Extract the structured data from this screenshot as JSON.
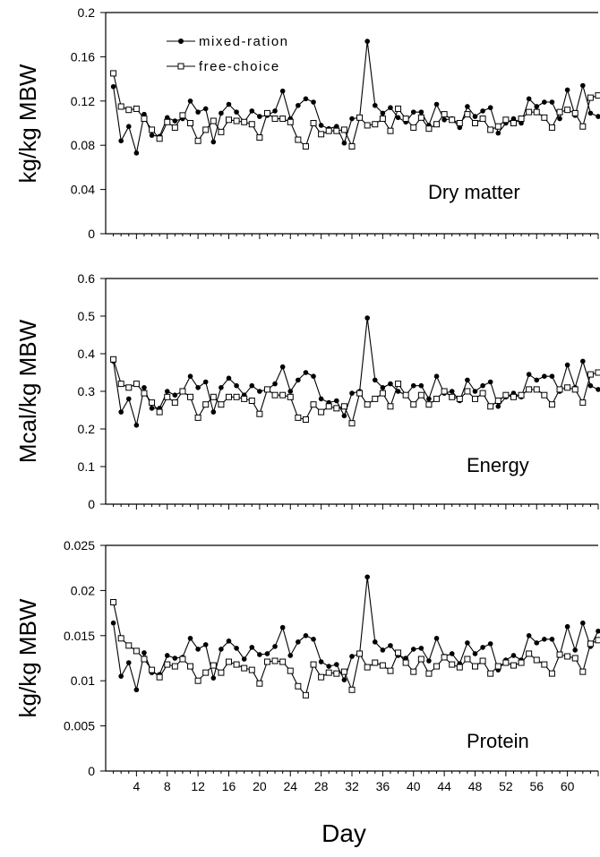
{
  "chart_data": [
    {
      "type": "line",
      "panel_label": "Dry matter",
      "ylabel": "kg/kg MBW",
      "xlim": [
        0,
        64
      ],
      "ylim": [
        0,
        0.2
      ],
      "yticks": [
        "0",
        "0.04",
        "0.08",
        "0.12",
        "0.16",
        "0.2"
      ],
      "grid": false,
      "legend": {
        "position": "top-left",
        "entries": [
          "mixed-ration",
          "free-choice"
        ]
      },
      "series": [
        {
          "name": "mixed-ration",
          "marker": "filled-circle",
          "x": [
            1,
            2,
            3,
            4,
            5,
            6,
            7,
            8,
            9,
            10,
            11,
            12,
            13,
            14,
            15,
            16,
            17,
            18,
            19,
            20,
            21,
            22,
            23,
            24,
            25,
            26,
            27,
            28,
            29,
            30,
            31,
            32,
            33,
            34,
            35,
            36,
            37,
            38,
            39,
            40,
            41,
            42,
            43,
            44,
            45,
            46,
            47,
            48,
            49,
            50,
            51,
            52,
            53,
            54,
            55,
            56,
            57,
            58,
            59,
            60,
            61,
            62,
            63,
            64
          ],
          "values": [
            0.133,
            0.084,
            0.097,
            0.073,
            0.108,
            0.089,
            0.088,
            0.105,
            0.102,
            0.104,
            0.12,
            0.11,
            0.113,
            0.083,
            0.109,
            0.117,
            0.11,
            0.101,
            0.111,
            0.106,
            0.107,
            0.111,
            0.129,
            0.104,
            0.116,
            0.122,
            0.119,
            0.098,
            0.095,
            0.097,
            0.082,
            0.104,
            0.105,
            0.174,
            0.116,
            0.109,
            0.114,
            0.105,
            0.101,
            0.11,
            0.11,
            0.098,
            0.117,
            0.103,
            0.104,
            0.096,
            0.115,
            0.106,
            0.111,
            0.114,
            0.091,
            0.1,
            0.104,
            0.1,
            0.122,
            0.115,
            0.119,
            0.119,
            0.104,
            0.13,
            0.107,
            0.134,
            0.109,
            0.106
          ]
        },
        {
          "name": "free-choice",
          "marker": "open-square",
          "x": [
            1,
            2,
            3,
            4,
            5,
            6,
            7,
            8,
            9,
            10,
            11,
            12,
            13,
            14,
            15,
            16,
            17,
            18,
            19,
            20,
            21,
            22,
            23,
            24,
            25,
            26,
            27,
            28,
            29,
            30,
            31,
            32,
            33,
            34,
            35,
            36,
            37,
            38,
            39,
            40,
            41,
            42,
            43,
            44,
            45,
            46,
            47,
            48,
            49,
            50,
            51,
            52,
            53,
            54,
            55,
            56,
            57,
            58,
            59,
            60,
            61,
            62,
            63,
            64
          ],
          "values": [
            0.145,
            0.115,
            0.112,
            0.113,
            0.104,
            0.094,
            0.086,
            0.101,
            0.096,
            0.107,
            0.1,
            0.084,
            0.094,
            0.102,
            0.092,
            0.103,
            0.102,
            0.101,
            0.099,
            0.087,
            0.109,
            0.104,
            0.104,
            0.101,
            0.085,
            0.079,
            0.1,
            0.09,
            0.093,
            0.093,
            0.094,
            0.079,
            0.105,
            0.098,
            0.099,
            0.104,
            0.093,
            0.113,
            0.104,
            0.096,
            0.105,
            0.095,
            0.099,
            0.108,
            0.103,
            0.1,
            0.108,
            0.1,
            0.104,
            0.094,
            0.097,
            0.103,
            0.1,
            0.104,
            0.11,
            0.11,
            0.105,
            0.096,
            0.11,
            0.112,
            0.109,
            0.097,
            0.123,
            0.125
          ]
        }
      ]
    },
    {
      "type": "line",
      "panel_label": "Energy",
      "ylabel": "Mcal/kg MBW",
      "xlim": [
        0,
        64
      ],
      "ylim": [
        0,
        0.6
      ],
      "yticks": [
        "0",
        "0.1",
        "0.2",
        "0.3",
        "0.4",
        "0.5",
        "0.6"
      ],
      "grid": false,
      "series": [
        {
          "name": "mixed-ration",
          "marker": "filled-circle",
          "x": [
            1,
            2,
            3,
            4,
            5,
            6,
            7,
            8,
            9,
            10,
            11,
            12,
            13,
            14,
            15,
            16,
            17,
            18,
            19,
            20,
            21,
            22,
            23,
            24,
            25,
            26,
            27,
            28,
            29,
            30,
            31,
            32,
            33,
            34,
            35,
            36,
            37,
            38,
            39,
            40,
            41,
            42,
            43,
            44,
            45,
            46,
            47,
            48,
            49,
            50,
            51,
            52,
            53,
            54,
            55,
            56,
            57,
            58,
            59,
            60,
            61,
            62,
            63,
            64
          ],
          "values": [
            0.38,
            0.245,
            0.28,
            0.21,
            0.31,
            0.255,
            0.255,
            0.3,
            0.29,
            0.3,
            0.34,
            0.31,
            0.325,
            0.245,
            0.31,
            0.335,
            0.315,
            0.29,
            0.315,
            0.3,
            0.305,
            0.32,
            0.365,
            0.3,
            0.33,
            0.35,
            0.34,
            0.28,
            0.27,
            0.275,
            0.235,
            0.295,
            0.3,
            0.495,
            0.33,
            0.31,
            0.32,
            0.3,
            0.29,
            0.315,
            0.315,
            0.28,
            0.34,
            0.295,
            0.3,
            0.275,
            0.33,
            0.3,
            0.315,
            0.325,
            0.26,
            0.285,
            0.295,
            0.285,
            0.345,
            0.33,
            0.34,
            0.34,
            0.3,
            0.37,
            0.31,
            0.38,
            0.315,
            0.305
          ]
        },
        {
          "name": "free-choice",
          "marker": "open-square",
          "x": [
            1,
            2,
            3,
            4,
            5,
            6,
            7,
            8,
            9,
            10,
            11,
            12,
            13,
            14,
            15,
            16,
            17,
            18,
            19,
            20,
            21,
            22,
            23,
            24,
            25,
            26,
            27,
            28,
            29,
            30,
            31,
            32,
            33,
            34,
            35,
            36,
            37,
            38,
            39,
            40,
            41,
            42,
            43,
            44,
            45,
            46,
            47,
            48,
            49,
            50,
            51,
            52,
            53,
            54,
            55,
            56,
            57,
            58,
            59,
            60,
            61,
            62,
            63,
            64
          ],
          "values": [
            0.385,
            0.32,
            0.31,
            0.32,
            0.295,
            0.27,
            0.245,
            0.285,
            0.27,
            0.3,
            0.285,
            0.23,
            0.265,
            0.285,
            0.265,
            0.285,
            0.285,
            0.28,
            0.275,
            0.24,
            0.305,
            0.29,
            0.29,
            0.285,
            0.23,
            0.225,
            0.265,
            0.245,
            0.26,
            0.255,
            0.26,
            0.215,
            0.295,
            0.265,
            0.28,
            0.295,
            0.26,
            0.32,
            0.29,
            0.265,
            0.29,
            0.265,
            0.28,
            0.3,
            0.285,
            0.28,
            0.3,
            0.28,
            0.295,
            0.26,
            0.275,
            0.29,
            0.285,
            0.29,
            0.305,
            0.305,
            0.29,
            0.265,
            0.305,
            0.31,
            0.305,
            0.27,
            0.345,
            0.35
          ]
        }
      ]
    },
    {
      "type": "line",
      "panel_label": "Protein",
      "xlabel": "Day",
      "ylabel": "kg/kg MBW",
      "xlim": [
        0,
        64
      ],
      "ylim": [
        0,
        0.025
      ],
      "xticks": [
        "4",
        "8",
        "12",
        "16",
        "20",
        "24",
        "28",
        "32",
        "36",
        "40",
        "44",
        "48",
        "52",
        "56",
        "60"
      ],
      "yticks": [
        "0",
        "0.005",
        "0.01",
        "0.015",
        "0.02",
        "0.025"
      ],
      "grid": false,
      "series": [
        {
          "name": "mixed-ration",
          "marker": "filled-circle",
          "x": [
            1,
            2,
            3,
            4,
            5,
            6,
            7,
            8,
            9,
            10,
            11,
            12,
            13,
            14,
            15,
            16,
            17,
            18,
            19,
            20,
            21,
            22,
            23,
            24,
            25,
            26,
            27,
            28,
            29,
            30,
            31,
            32,
            33,
            34,
            35,
            36,
            37,
            38,
            39,
            40,
            41,
            42,
            43,
            44,
            45,
            46,
            47,
            48,
            49,
            50,
            51,
            52,
            53,
            54,
            55,
            56,
            57,
            58,
            59,
            60,
            61,
            62,
            63,
            64
          ],
          "values": [
            0.0164,
            0.0105,
            0.012,
            0.009,
            0.0131,
            0.0109,
            0.0107,
            0.0128,
            0.0125,
            0.0126,
            0.0147,
            0.0135,
            0.014,
            0.0103,
            0.0135,
            0.0144,
            0.0136,
            0.0124,
            0.0137,
            0.0129,
            0.013,
            0.0138,
            0.0159,
            0.0128,
            0.0143,
            0.015,
            0.0146,
            0.0121,
            0.0116,
            0.0118,
            0.0101,
            0.0127,
            0.013,
            0.0215,
            0.0143,
            0.0134,
            0.0139,
            0.0128,
            0.0125,
            0.0135,
            0.0136,
            0.0122,
            0.0147,
            0.0127,
            0.013,
            0.0119,
            0.0142,
            0.013,
            0.0137,
            0.0141,
            0.0112,
            0.0123,
            0.0128,
            0.0123,
            0.015,
            0.0142,
            0.0146,
            0.0146,
            0.0128,
            0.016,
            0.0134,
            0.0164,
            0.0138,
            0.0155
          ]
        },
        {
          "name": "free-choice",
          "marker": "open-square",
          "x": [
            1,
            2,
            3,
            4,
            5,
            6,
            7,
            8,
            9,
            10,
            11,
            12,
            13,
            14,
            15,
            16,
            17,
            18,
            19,
            20,
            21,
            22,
            23,
            24,
            25,
            26,
            27,
            28,
            29,
            30,
            31,
            32,
            33,
            34,
            35,
            36,
            37,
            38,
            39,
            40,
            41,
            42,
            43,
            44,
            45,
            46,
            47,
            48,
            49,
            50,
            51,
            52,
            53,
            54,
            55,
            56,
            57,
            58,
            59,
            60,
            61,
            62,
            63,
            64
          ],
          "values": [
            0.0187,
            0.0147,
            0.0139,
            0.0133,
            0.0124,
            0.0112,
            0.0104,
            0.0118,
            0.0116,
            0.0124,
            0.0116,
            0.01,
            0.0109,
            0.0117,
            0.0109,
            0.0121,
            0.0118,
            0.0114,
            0.0112,
            0.0097,
            0.0121,
            0.0122,
            0.0121,
            0.0111,
            0.0094,
            0.0084,
            0.0118,
            0.0104,
            0.0109,
            0.0108,
            0.011,
            0.009,
            0.013,
            0.0115,
            0.012,
            0.0117,
            0.0111,
            0.0131,
            0.012,
            0.011,
            0.0124,
            0.0108,
            0.0116,
            0.0126,
            0.0118,
            0.0115,
            0.0124,
            0.0116,
            0.0122,
            0.0108,
            0.0116,
            0.012,
            0.0117,
            0.012,
            0.013,
            0.0123,
            0.0118,
            0.0108,
            0.0129,
            0.0127,
            0.0125,
            0.011,
            0.0141,
            0.0145
          ]
        }
      ]
    }
  ]
}
